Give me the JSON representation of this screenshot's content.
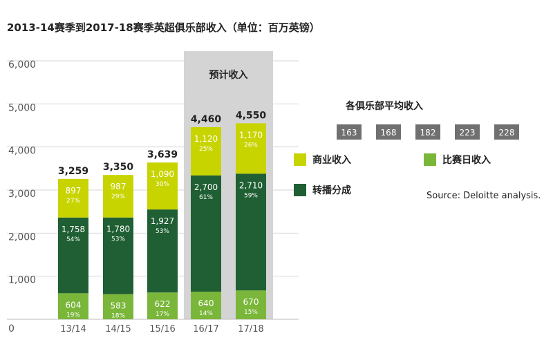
{
  "chart_data": {
    "type": "bar",
    "stacked": true,
    "title": "2013-14赛季到2017-18赛季英超俱乐部收入（单位：百万英镑）",
    "categories": [
      "13/14",
      "14/15",
      "15/16",
      "16/17",
      "17/18"
    ],
    "ylim": [
      0,
      6000
    ],
    "yticks": [
      "0",
      "1,000",
      "2,000",
      "3,000",
      "4,000",
      "5,000",
      "6,000"
    ],
    "grid": true,
    "series": [
      {
        "name": "比赛日收入",
        "color": "#7ab639",
        "values": [
          604,
          583,
          622,
          640,
          670
        ],
        "labels": [
          "604",
          "583",
          "622",
          "640",
          "670"
        ],
        "pct": [
          "19%",
          "18%",
          "17%",
          "14%",
          "15%"
        ]
      },
      {
        "name": "转播分成",
        "color": "#1f5f33",
        "values": [
          1758,
          1780,
          1927,
          2700,
          2710
        ],
        "labels": [
          "1,758",
          "1,780",
          "1,927",
          "2,700",
          "2,710"
        ],
        "pct": [
          "54%",
          "53%",
          "53%",
          "61%",
          "59%"
        ]
      },
      {
        "name": "商业收入",
        "color": "#c8d400",
        "values": [
          897,
          987,
          1090,
          1120,
          1170
        ],
        "labels": [
          "897",
          "987",
          "1,090",
          "1,120",
          "1,170"
        ],
        "pct": [
          "27%",
          "29%",
          "30%",
          "25%",
          "26%"
        ]
      }
    ],
    "totals": [
      "3,259",
      "3,350",
      "3,639",
      "4,460",
      "4,550"
    ],
    "projection": {
      "label": "预计收入",
      "categories": [
        "16/17",
        "17/18"
      ],
      "color": "#d4d4d4"
    },
    "average": {
      "title": "各俱乐部平均收入",
      "values": [
        "163",
        "168",
        "182",
        "223",
        "228"
      ],
      "color": "#707070"
    },
    "legend_order": [
      {
        "name": "商业收入",
        "color": "#c8d400"
      },
      {
        "name": "比赛日收入",
        "color": "#7ab639"
      },
      {
        "name": "转播分成",
        "color": "#1f5f33"
      }
    ],
    "source": "Source: Deloitte analysis."
  }
}
